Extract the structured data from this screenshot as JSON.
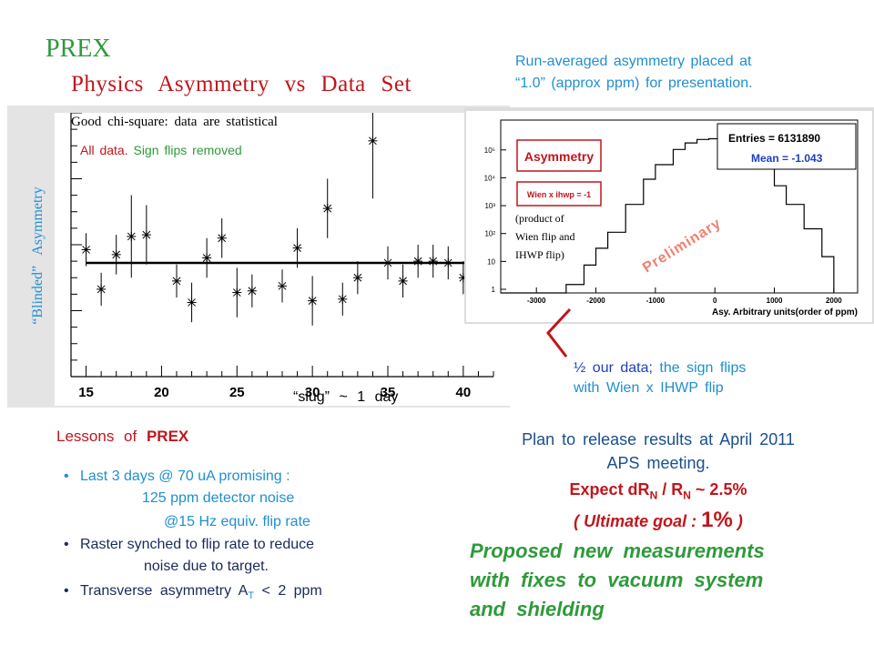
{
  "slide": {
    "title": "PREX",
    "subtitle": "Physics Asymmetry vs Data Set",
    "left_plot": {
      "ylabel": "“Blinded” Asymmetry",
      "xlabel": "“slug” ~ 1 day",
      "note_chi": "Good chi-square: data are statistical",
      "note_all_a": "All data.",
      "note_all_b": "Sign flips removed"
    },
    "right_plot": {
      "caption_line1": "Run-averaged asymmetry placed at",
      "caption_line2": "“1.0” (approx ppm) for presentation.",
      "box_title": "Asymmetry",
      "box_sub": "Wien x ihwp = -1",
      "product_note_1": "(product of",
      "product_note_2": "Wien flip and",
      "product_note_3": "IHWP flip)",
      "entries_label": "Entries = 6131890",
      "mean_label": "Mean = -1.043",
      "watermark": "Preliminary",
      "xlabel": "Asy. Arbitrary units(order of ppm)"
    },
    "half_note_a": "½ our data;",
    "half_note_b": " the sign flips",
    "half_note_c": "with Wien x IHWP flip",
    "lessons_a": "Lessons of",
    "lessons_b": "PREX",
    "bullets": [
      "Last 3 days @ 70 uA promising :",
      "125 ppm detector noise",
      "@15 Hz equiv. flip rate",
      "Raster synched to flip rate to reduce",
      "noise due to target.",
      "Transverse asymmetry A",
      "T",
      " < 2 ppm"
    ],
    "plan_line1": "Plan to release results at April 2011",
    "plan_line2": "APS meeting.",
    "expect_a": "Expect dR",
    "expect_sub1": "N",
    "expect_b": " / R",
    "expect_sub2": "N",
    "expect_c": " ~ 2.5%",
    "ultimate_a": "( Ultimate goal : ",
    "ultimate_b": "1%",
    "ultimate_c": " )",
    "proposed_1": "Proposed new measurements",
    "proposed_2": "with fixes to vacuum system",
    "proposed_3": "and shielding"
  },
  "chart_data": [
    {
      "type": "scatter",
      "x": [
        15,
        16,
        17,
        18,
        19,
        21,
        22,
        23,
        24,
        25,
        26,
        28,
        29,
        30,
        31,
        32,
        33,
        34,
        35,
        36,
        37,
        38,
        39,
        40
      ],
      "y": [
        0.77,
        0.53,
        0.74,
        0.85,
        0.86,
        0.58,
        0.45,
        0.72,
        0.84,
        0.51,
        0.52,
        0.55,
        0.78,
        0.46,
        1.02,
        0.47,
        0.6,
        1.43,
        0.69,
        0.58,
        0.7,
        0.7,
        0.69,
        0.6
      ],
      "yerr": [
        0.1,
        0.1,
        0.12,
        0.25,
        0.18,
        0.1,
        0.12,
        0.12,
        0.12,
        0.15,
        0.1,
        0.1,
        0.12,
        0.15,
        0.18,
        0.1,
        0.1,
        0.35,
        0.1,
        0.1,
        0.1,
        0.1,
        0.1,
        0.1
      ],
      "fit_line": [
        0.69,
        0.69
      ],
      "xticks": [
        15,
        20,
        25,
        30,
        35,
        40
      ],
      "xlim": [
        14,
        42
      ],
      "xlabel": "“slug” ~ 1 day",
      "ylabel": "“Blinded” Asymmetry",
      "grid": false
    },
    {
      "type": "line",
      "title": "Asymmetry",
      "xlabel": "Asy. Arbitrary units(order of ppm)",
      "x": [
        -3600,
        -3000,
        -2500,
        -2200,
        -2000,
        -1800,
        -1500,
        -1200,
        -1000,
        -700,
        -500,
        -300,
        -100,
        100,
        300,
        500,
        700,
        1000,
        1200,
        1500,
        1800,
        2000
      ],
      "y": [
        0,
        1,
        2,
        10,
        40,
        150,
        1500,
        12000,
        40000,
        140000,
        240000,
        320000,
        340000,
        300000,
        200000,
        110000,
        40000,
        7000,
        1500,
        200,
        20,
        1
      ],
      "xticks": [
        -3000,
        -2000,
        -1000,
        0,
        1000,
        2000
      ],
      "yticks_labels": [
        "1",
        "10",
        "10²",
        "10³",
        "10⁴",
        "10⁵"
      ],
      "log_y": true,
      "legend": "top-right",
      "entries": 6131890,
      "mean": -1.043
    }
  ]
}
